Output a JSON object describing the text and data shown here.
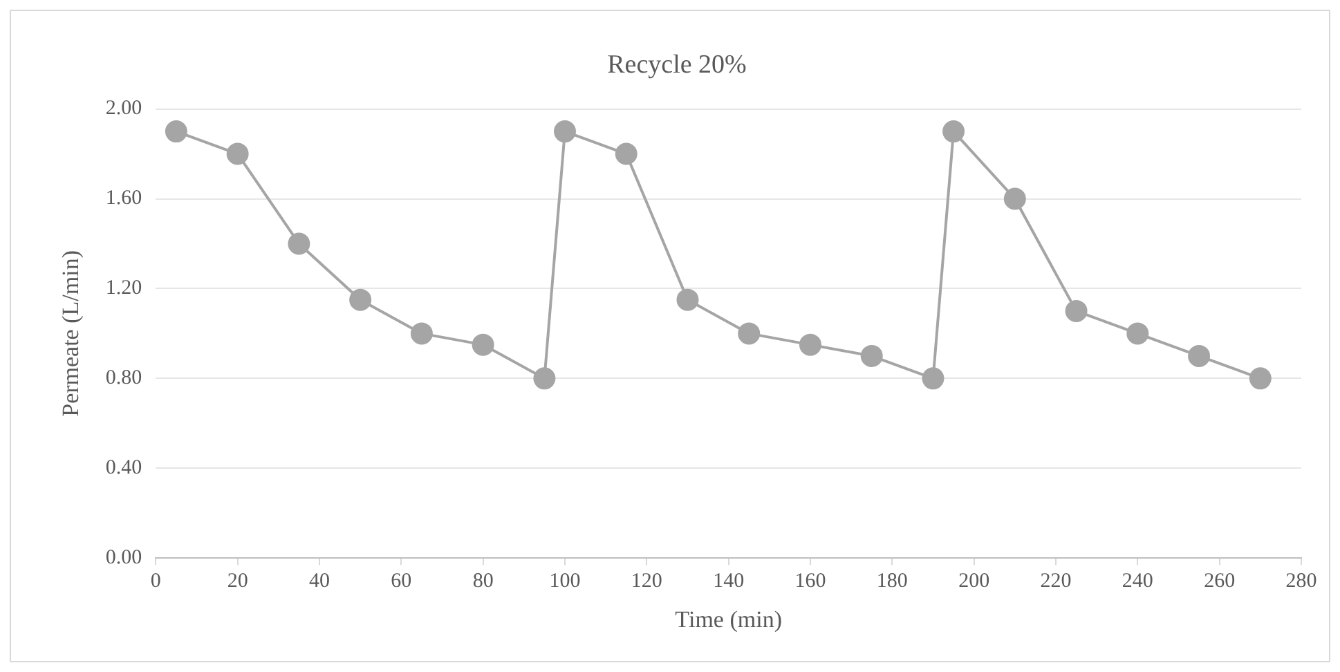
{
  "chart_data": {
    "type": "line",
    "title": "Recycle 20%",
    "xlabel": "Time (min)",
    "ylabel": "Permeate (L/min)",
    "x": [
      5,
      20,
      35,
      50,
      65,
      80,
      95,
      100,
      115,
      130,
      145,
      160,
      175,
      190,
      195,
      210,
      225,
      240,
      255,
      270
    ],
    "series": [
      {
        "color": "#a5a5a5",
        "values": [
          1.9,
          1.8,
          1.4,
          1.15,
          1.0,
          0.95,
          0.8,
          1.9,
          1.8,
          1.15,
          1.0,
          0.95,
          0.9,
          0.8,
          1.9,
          1.6,
          1.1,
          1.0,
          0.9,
          0.8
        ]
      }
    ],
    "xlim": [
      0,
      280
    ],
    "xticks": [
      0,
      20,
      40,
      60,
      80,
      100,
      120,
      140,
      160,
      180,
      200,
      220,
      240,
      260,
      280
    ],
    "ylim": [
      0,
      2
    ],
    "yticks": [
      {
        "value": 0,
        "label": "0.00"
      },
      {
        "value": 0.4,
        "label": "0.40"
      },
      {
        "value": 0.8,
        "label": "0.80"
      },
      {
        "value": 1.2,
        "label": "1.20"
      },
      {
        "value": 1.6,
        "label": "1.60"
      },
      {
        "value": 2,
        "label": "2.00"
      }
    ],
    "grid": "y",
    "legend": false,
    "marker": "circle",
    "line_style": "solid"
  }
}
